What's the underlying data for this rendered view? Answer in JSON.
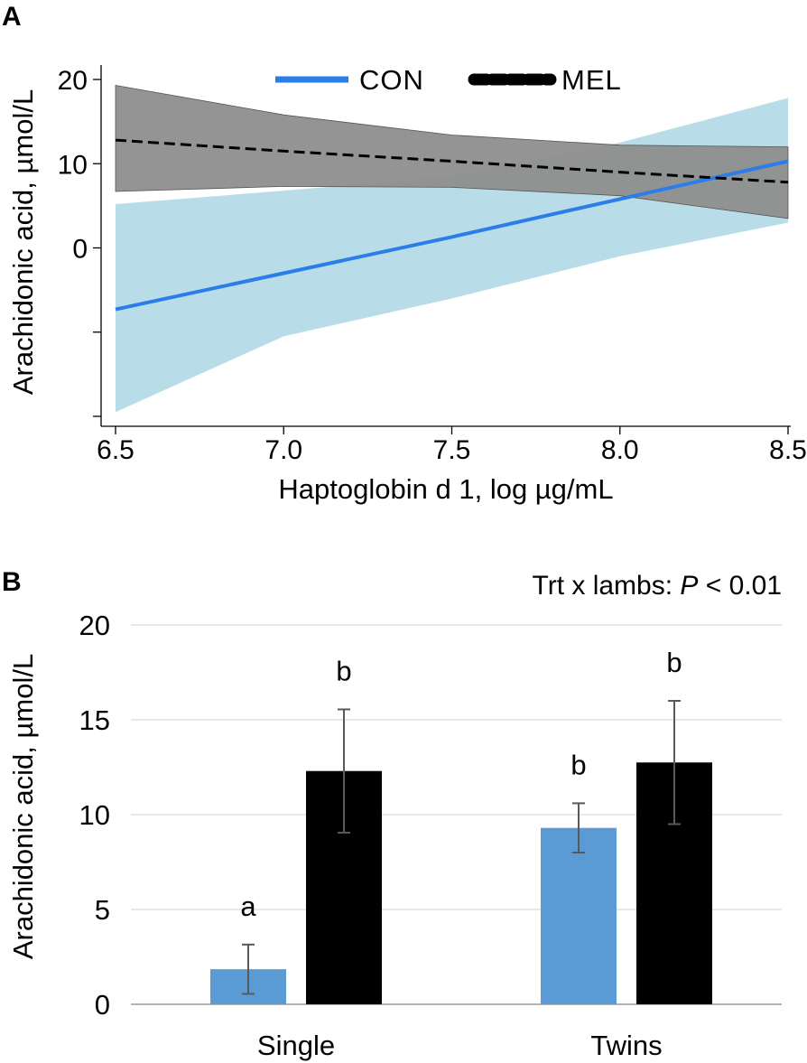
{
  "chart_data": [
    {
      "panel": "A",
      "type": "line",
      "title": "",
      "xlabel": "Haptoglobin d 1, log µg/mL",
      "ylabel": "Arachidonic acid, µmol/L",
      "xlim": [
        6.5,
        8.5
      ],
      "ylim": [
        -20,
        20
      ],
      "xticks": [
        "6.5",
        "7.0",
        "7.5",
        "8.0",
        "8.5"
      ],
      "xtick_values": [
        6.5,
        7.0,
        7.5,
        8.0,
        8.5
      ],
      "yticks": [
        "20",
        "10",
        "0",
        "",
        ""
      ],
      "ytick_values": [
        20,
        10,
        0,
        -10,
        -20
      ],
      "legend": [
        "CON",
        "MEL"
      ],
      "legend_position": "top",
      "grid": false,
      "series": [
        {
          "name": "CON",
          "color": "#2b7de9",
          "band_color": "#b9dde8",
          "style": "solid",
          "x": [
            6.5,
            7.0,
            7.5,
            8.0,
            8.5
          ],
          "values": [
            -7.3,
            -3.0,
            1.3,
            5.8,
            10.3
          ],
          "ci_lower": [
            -19.5,
            -10.5,
            -6.0,
            -1.0,
            3.0
          ],
          "ci_upper": [
            5.2,
            6.8,
            8.5,
            12.5,
            17.8
          ]
        },
        {
          "name": "MEL",
          "color": "#000000",
          "band_color": "#8e8e8e",
          "style": "dashed",
          "x": [
            6.5,
            7.0,
            7.5,
            8.0,
            8.5
          ],
          "values": [
            12.8,
            11.5,
            10.3,
            9.0,
            7.8
          ],
          "ci_lower": [
            6.7,
            7.3,
            7.2,
            6.2,
            3.5
          ],
          "ci_upper": [
            19.3,
            15.8,
            13.4,
            12.2,
            12.0
          ]
        }
      ]
    },
    {
      "panel": "B",
      "type": "bar",
      "title": "",
      "xlabel": "",
      "ylabel": "Arachidonic acid, µmol/L",
      "ylim": [
        0,
        20
      ],
      "yticks": [
        0,
        5,
        10,
        15,
        20
      ],
      "grid": true,
      "categories": [
        "Single",
        "Twins"
      ],
      "annotation": {
        "text_before": "Trt x lambs: ",
        "p_label": "P",
        "text_after": " < 0.01"
      },
      "series": [
        {
          "name": "CON",
          "color": "#5b9bd5",
          "values": [
            1.85,
            9.3
          ],
          "errors": [
            1.3,
            1.3
          ],
          "letters": [
            "a",
            "b"
          ]
        },
        {
          "name": "MEL",
          "color": "#000000",
          "values": [
            12.3,
            12.75
          ],
          "errors": [
            3.25,
            3.25
          ],
          "letters": [
            "b",
            "b"
          ]
        }
      ]
    }
  ]
}
